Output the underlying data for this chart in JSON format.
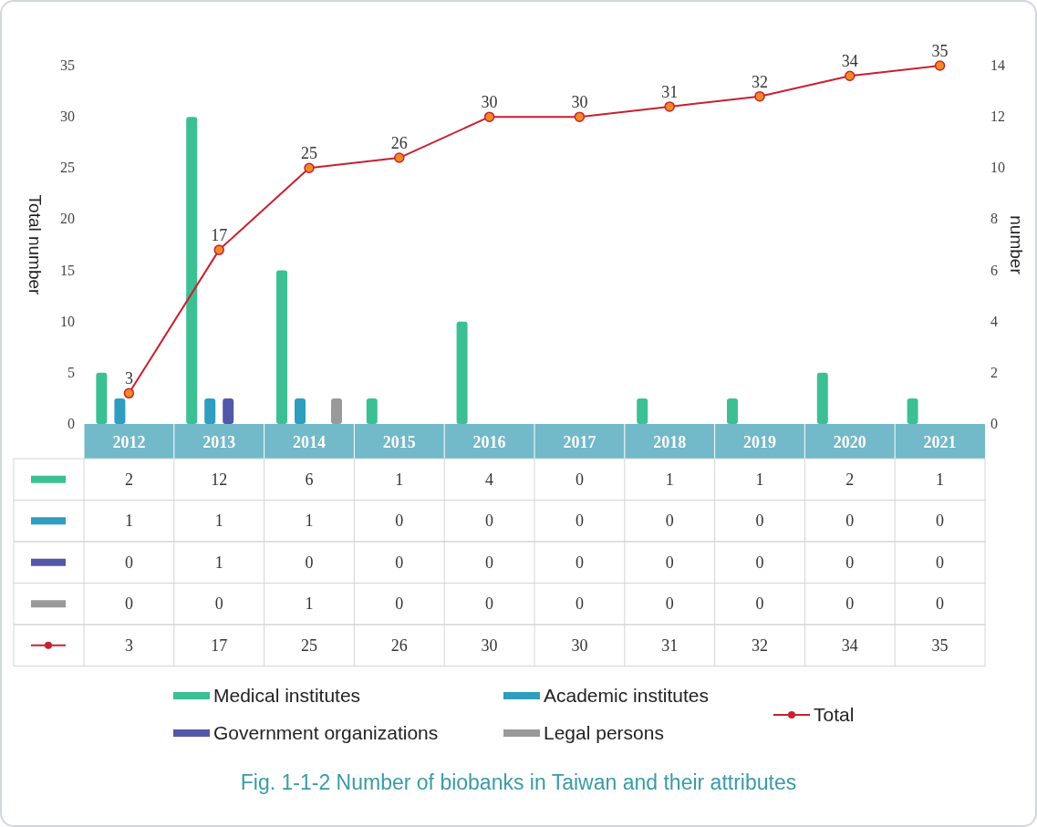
{
  "chart_data": {
    "type": "bar",
    "title": "Fig. 1-1-2  Number of biobanks in Taiwan and their attributes",
    "categories": [
      "2012",
      "2013",
      "2014",
      "2015",
      "2016",
      "2017",
      "2018",
      "2019",
      "2020",
      "2021"
    ],
    "series": [
      {
        "name": "Medical institutes",
        "color": "#3dbf94",
        "axis": "y2",
        "values": [
          2,
          12,
          6,
          1,
          4,
          0,
          1,
          1,
          2,
          1
        ]
      },
      {
        "name": "Academic institutes",
        "color": "#2e9dbf",
        "axis": "y2",
        "values": [
          1,
          1,
          1,
          0,
          0,
          0,
          0,
          0,
          0,
          0
        ]
      },
      {
        "name": "Government organizations",
        "color": "#5457a8",
        "axis": "y2",
        "values": [
          0,
          1,
          0,
          0,
          0,
          0,
          0,
          0,
          0,
          0
        ]
      },
      {
        "name": "Legal persons",
        "color": "#9a9a9a",
        "axis": "y2",
        "values": [
          0,
          0,
          1,
          0,
          0,
          0,
          0,
          0,
          0,
          0
        ]
      },
      {
        "name": "Total",
        "type": "line",
        "color": "#c8202f",
        "values": [
          3,
          17,
          25,
          26,
          30,
          30,
          31,
          32,
          34,
          35
        ]
      }
    ],
    "annotations": [
      {
        "text": "3",
        "x": "2012",
        "y": 3
      },
      {
        "text": "17",
        "x": "2013",
        "y": 17
      },
      {
        "text": "25",
        "x": "2014",
        "y": 25
      },
      {
        "text": "26",
        "x": "2015",
        "y": 26
      },
      {
        "text": "30",
        "x": "2016",
        "y": 30
      },
      {
        "text": "30",
        "x": "2017",
        "y": 30
      },
      {
        "text": "31",
        "x": "2018",
        "y": 31
      },
      {
        "text": "32",
        "x": "2019",
        "y": 32
      },
      {
        "text": "34",
        "x": "2020",
        "y": 34
      },
      {
        "text": "35",
        "x": "2021",
        "y": 35
      }
    ],
    "ylabel": "Total number",
    "y2label": "number",
    "ylim": [
      0,
      35
    ],
    "yticks": [
      0,
      5,
      10,
      15,
      20,
      25,
      30,
      35
    ],
    "y2lim": [
      0,
      14
    ],
    "y2ticks": [
      0,
      2,
      4,
      6,
      8,
      10,
      12,
      14
    ],
    "data_labels": true,
    "marker": "circle",
    "legend": "bottom",
    "grid": false
  }
}
